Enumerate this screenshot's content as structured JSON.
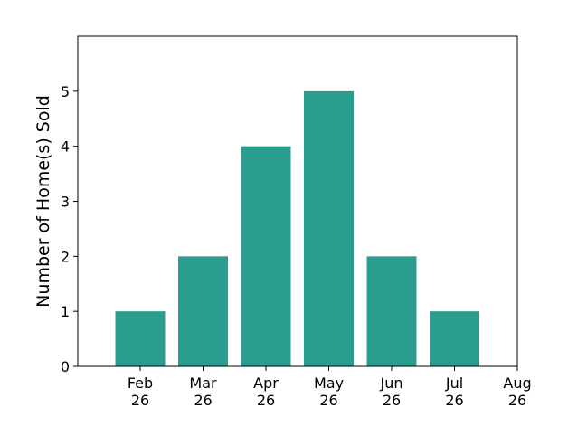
{
  "chart_data": {
    "type": "bar",
    "title": "",
    "xlabel": "",
    "ylabel": "Number of Home(s) Sold",
    "categories": [
      "Feb\n26",
      "Mar\n26",
      "Apr\n26",
      "May\n26",
      "Jun\n26",
      "Jul\n26"
    ],
    "values": [
      1,
      2,
      4,
      5,
      2,
      1
    ],
    "x_tick_labels": [
      "Feb\n26",
      "Mar\n26",
      "Apr\n26",
      "May\n26",
      "Jun\n26",
      "Jul\n26",
      "Aug\n26"
    ],
    "y_ticks": [
      0,
      1,
      2,
      3,
      4,
      5
    ],
    "ylim": [
      0,
      6
    ],
    "grid": false,
    "legend": "none",
    "colors": {
      "bar": "#2a9d8f",
      "axis": "#000000",
      "background": "#ffffff"
    }
  }
}
